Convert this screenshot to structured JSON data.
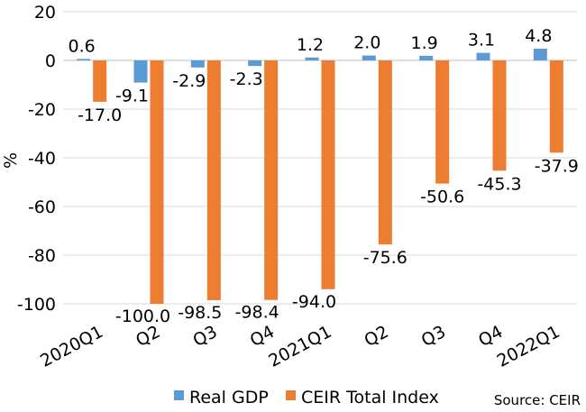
{
  "chart_data": {
    "type": "bar",
    "categories": [
      "2020Q1",
      "Q2",
      "Q3",
      "Q4",
      "2021Q1",
      "Q2",
      "Q3",
      "Q4",
      "2022Q1"
    ],
    "series": [
      {
        "name": "Real GDP",
        "color": "#5b9bd5",
        "values": [
          0.6,
          -9.1,
          -2.9,
          -2.3,
          1.2,
          2.0,
          1.9,
          3.1,
          4.8
        ]
      },
      {
        "name": "CEIR Total Index",
        "color": "#ed7d31",
        "values": [
          -17.0,
          -100.0,
          -98.5,
          -98.4,
          -94.0,
          -75.6,
          -50.6,
          -45.3,
          -37.9
        ]
      }
    ],
    "ylabel": "%",
    "ylim": [
      -100,
      20
    ],
    "yticks": [
      20,
      0,
      -20,
      -40,
      -60,
      -80,
      -100
    ],
    "grid": true,
    "legend": "bottom",
    "source": "Source: CEIR"
  }
}
